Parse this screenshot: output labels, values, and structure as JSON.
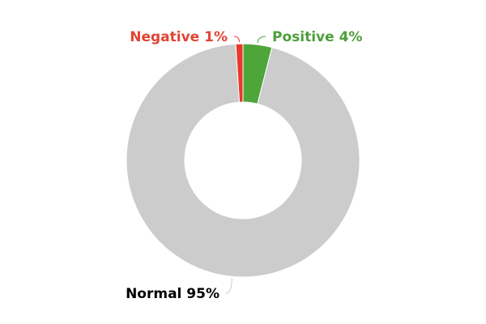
{
  "chart_data": {
    "type": "pie",
    "variant": "donut",
    "title": "",
    "legend": "none",
    "slices": [
      {
        "name": "Negative",
        "value": 1,
        "label": "Negative 1%",
        "color": "#e8392a"
      },
      {
        "name": "Positive",
        "value": 4,
        "label": "Positive 4%",
        "color": "#4ea63a"
      },
      {
        "name": "Normal",
        "value": 95,
        "label": "Normal 95%",
        "color": "#cccccc"
      }
    ],
    "label_colors": {
      "Negative": "#e04434",
      "Positive": "#4e9e3a",
      "Normal": "#000000"
    }
  }
}
